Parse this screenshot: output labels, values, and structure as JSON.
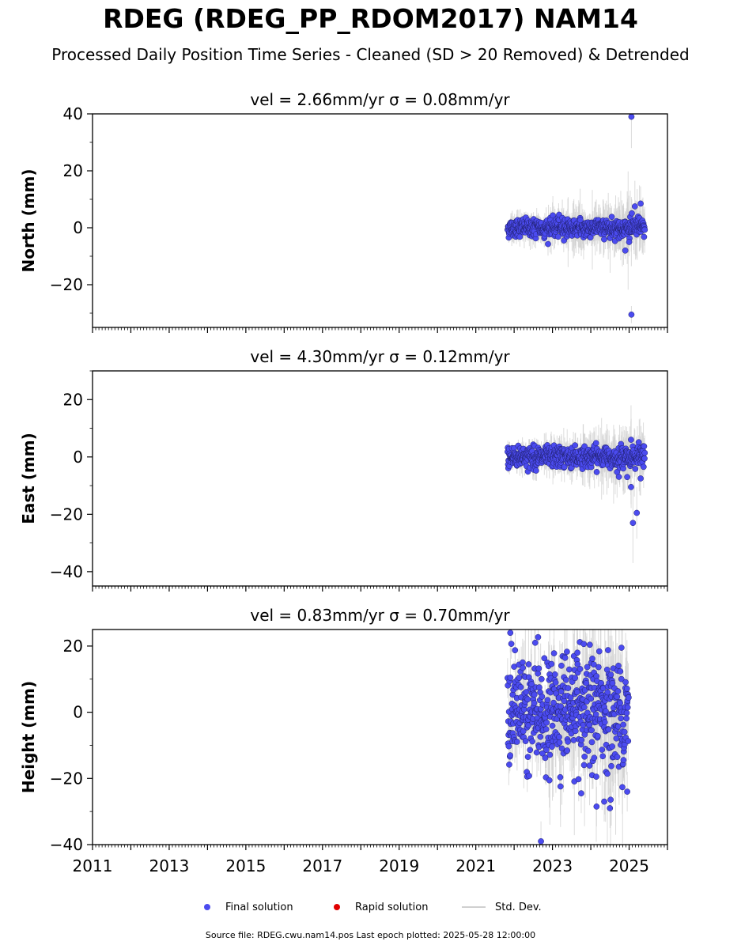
{
  "figure": {
    "title": "RDEG (RDEG_PP_RDOM2017) NAM14",
    "subtitle": "Processed Daily Position Time Series - Cleaned (SD > 20 Removed) & Detrended",
    "footer": "Source file: RDEG.cwu.nam14.pos  Last epoch plotted: 2025-05-28 12:00:00"
  },
  "legend": {
    "final_label": "Final solution",
    "rapid_label": "Rapid solution",
    "std_label": "Std. Dev.",
    "final_color": "#4b4bef",
    "rapid_color": "#e00000",
    "std_color": "#d0d0d0"
  },
  "chart_data": [
    {
      "type": "scatter",
      "title": "vel = 2.66mm/yr   σ = 0.08mm/yr",
      "ylabel": "North (mm)",
      "xlim": [
        2011,
        2026
      ],
      "ylim": [
        -35,
        40
      ],
      "yticks": [
        -20,
        0,
        20,
        40
      ],
      "xticks": [
        2011,
        2013,
        2015,
        2017,
        2019,
        2021,
        2023,
        2025
      ],
      "show_xticklabels": false,
      "data_start": 2021.83,
      "data_end": 2025.41,
      "scatter_sd": 1.6,
      "err_sd": 3.0,
      "outliers": [
        [
          2025.06,
          39,
          11
        ],
        [
          2025.06,
          -30.5,
          3
        ],
        [
          2024.9,
          -8,
          3
        ],
        [
          2025.3,
          8.5,
          6
        ],
        [
          2025.0,
          -5,
          5
        ],
        [
          2025.15,
          7.5,
          9
        ]
      ]
    },
    {
      "type": "scatter",
      "title": "vel = 4.30mm/yr   σ = 0.12mm/yr",
      "ylabel": "East (mm)",
      "xlim": [
        2011,
        2026
      ],
      "ylim": [
        -45,
        30
      ],
      "yticks": [
        -40,
        -20,
        0,
        20
      ],
      "xticks": [
        2011,
        2013,
        2015,
        2017,
        2019,
        2021,
        2023,
        2025
      ],
      "show_xticklabels": false,
      "data_start": 2021.83,
      "data_end": 2025.41,
      "scatter_sd": 1.8,
      "err_sd": 3.0,
      "outliers": [
        [
          2025.1,
          -23,
          14
        ],
        [
          2025.2,
          -19.5,
          9
        ],
        [
          2025.05,
          -10.5,
          6
        ],
        [
          2024.95,
          -7,
          4
        ],
        [
          2025.3,
          -7.5,
          6
        ],
        [
          2025.05,
          6,
          12
        ]
      ]
    },
    {
      "type": "scatter",
      "title": "vel = 0.83mm/yr   σ = 0.70mm/yr",
      "ylabel": "Height (mm)",
      "xlim": [
        2011,
        2026
      ],
      "ylim": [
        -40,
        25
      ],
      "yticks": [
        -40,
        -20,
        0,
        20
      ],
      "xticks": [
        2011,
        2013,
        2015,
        2017,
        2019,
        2021,
        2023,
        2025
      ],
      "show_xticklabels": true,
      "data_start": 2021.83,
      "data_end": 2024.99,
      "scatter_sd": 8.0,
      "err_sd": 8.0,
      "outliers": [
        [
          2021.9,
          24,
          6
        ],
        [
          2022.55,
          21,
          6
        ],
        [
          2022.7,
          -39,
          6
        ],
        [
          2024.5,
          -29,
          6
        ],
        [
          2024.15,
          -28.5,
          6
        ],
        [
          2024.35,
          -27,
          6
        ],
        [
          2023.75,
          -24.5,
          6
        ],
        [
          2024.95,
          -24,
          6
        ],
        [
          2023.65,
          18,
          6
        ],
        [
          2024.8,
          19.5,
          6
        ]
      ]
    }
  ]
}
